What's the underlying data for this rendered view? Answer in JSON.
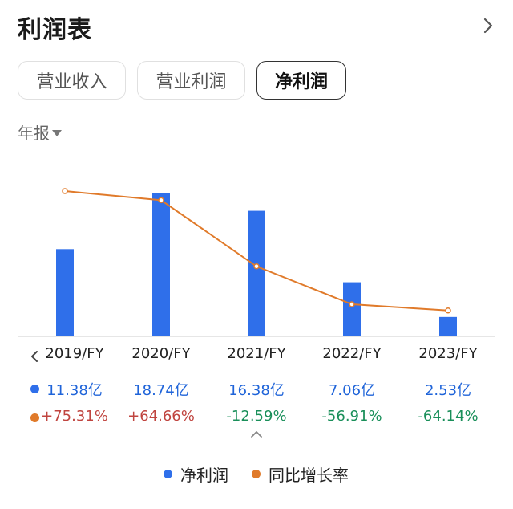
{
  "header": {
    "title": "利润表"
  },
  "tabs": [
    {
      "label": "营业收入",
      "active": false
    },
    {
      "label": "营业利润",
      "active": false
    },
    {
      "label": "净利润",
      "active": true
    }
  ],
  "period": {
    "label": "年报"
  },
  "colors": {
    "bar": "#2f6fea",
    "line": "#e07a2a",
    "positive": "#c0443f",
    "negative": "#1a8f5a",
    "value": "#1f64d9"
  },
  "chart_data": {
    "type": "bar",
    "categories": [
      "2019/FY",
      "2020/FY",
      "2021/FY",
      "2022/FY",
      "2023/FY"
    ],
    "series": [
      {
        "name": "净利润",
        "type": "bar",
        "values": [
          11.38,
          18.74,
          16.38,
          7.06,
          2.53
        ],
        "unit": "亿"
      },
      {
        "name": "同比增长率",
        "type": "line",
        "values": [
          75.31,
          64.66,
          -12.59,
          -56.91,
          -64.14
        ],
        "unit": "%"
      }
    ]
  },
  "table": {
    "values": [
      "11.38亿",
      "18.74亿",
      "16.38亿",
      "7.06亿",
      "2.53亿"
    ],
    "growth": [
      "+75.31%",
      "+64.66%",
      "-12.59%",
      "-56.91%",
      "-64.14%"
    ]
  },
  "legend": [
    {
      "label": "净利润",
      "icon": "blue-dot"
    },
    {
      "label": "同比增长率",
      "icon": "orange-dot"
    }
  ]
}
